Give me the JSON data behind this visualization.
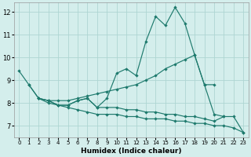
{
  "xlabel": "Humidex (Indice chaleur)",
  "background_color": "#d4eeec",
  "grid_color": "#aed6d2",
  "line_color": "#1e7a6d",
  "xlim": [
    -0.5,
    23.5
  ],
  "ylim": [
    6.5,
    12.4
  ],
  "yticks": [
    7,
    8,
    9,
    10,
    11,
    12
  ],
  "xticks": [
    0,
    1,
    2,
    3,
    4,
    5,
    6,
    7,
    8,
    9,
    10,
    11,
    12,
    13,
    14,
    15,
    16,
    17,
    18,
    19,
    20,
    21,
    22,
    23
  ],
  "series": [
    {
      "x": [
        0,
        1,
        2,
        3,
        4,
        5,
        6,
        7,
        8,
        9,
        10,
        11,
        12,
        13,
        14,
        15,
        16,
        17,
        18,
        19,
        20,
        21
      ],
      "y": [
        9.4,
        8.8,
        8.2,
        8.1,
        7.9,
        7.9,
        8.1,
        8.2,
        7.8,
        8.2,
        9.3,
        9.5,
        9.2,
        10.7,
        11.8,
        11.4,
        12.2,
        11.5,
        10.1,
        8.8,
        7.5,
        7.4
      ]
    },
    {
      "x": [
        1,
        2,
        3,
        4,
        5,
        6,
        7,
        8,
        9,
        10,
        11,
        12,
        13,
        14,
        15,
        16,
        17,
        18,
        19,
        20
      ],
      "y": [
        8.8,
        8.2,
        8.1,
        8.1,
        8.1,
        8.2,
        8.3,
        8.4,
        8.5,
        8.6,
        8.7,
        8.8,
        9.0,
        9.2,
        9.5,
        9.7,
        9.9,
        10.1,
        8.8,
        8.8
      ]
    },
    {
      "x": [
        2,
        3,
        4,
        5,
        6,
        7,
        8,
        9,
        10,
        11,
        12,
        13,
        14,
        15,
        16,
        17,
        18,
        19,
        20,
        21,
        22,
        23
      ],
      "y": [
        8.2,
        8.1,
        7.9,
        7.9,
        8.1,
        8.2,
        7.8,
        7.8,
        7.8,
        7.7,
        7.7,
        7.6,
        7.6,
        7.5,
        7.5,
        7.4,
        7.4,
        7.3,
        7.2,
        7.4,
        7.4,
        6.7
      ]
    },
    {
      "x": [
        2,
        3,
        4,
        5,
        6,
        7,
        8,
        9,
        10,
        11,
        12,
        13,
        14,
        15,
        16,
        17,
        18,
        19,
        20,
        21,
        22,
        23
      ],
      "y": [
        8.2,
        8.0,
        7.9,
        7.8,
        7.7,
        7.6,
        7.5,
        7.5,
        7.5,
        7.4,
        7.4,
        7.3,
        7.3,
        7.3,
        7.2,
        7.2,
        7.1,
        7.1,
        7.0,
        7.0,
        6.9,
        6.7
      ]
    }
  ]
}
